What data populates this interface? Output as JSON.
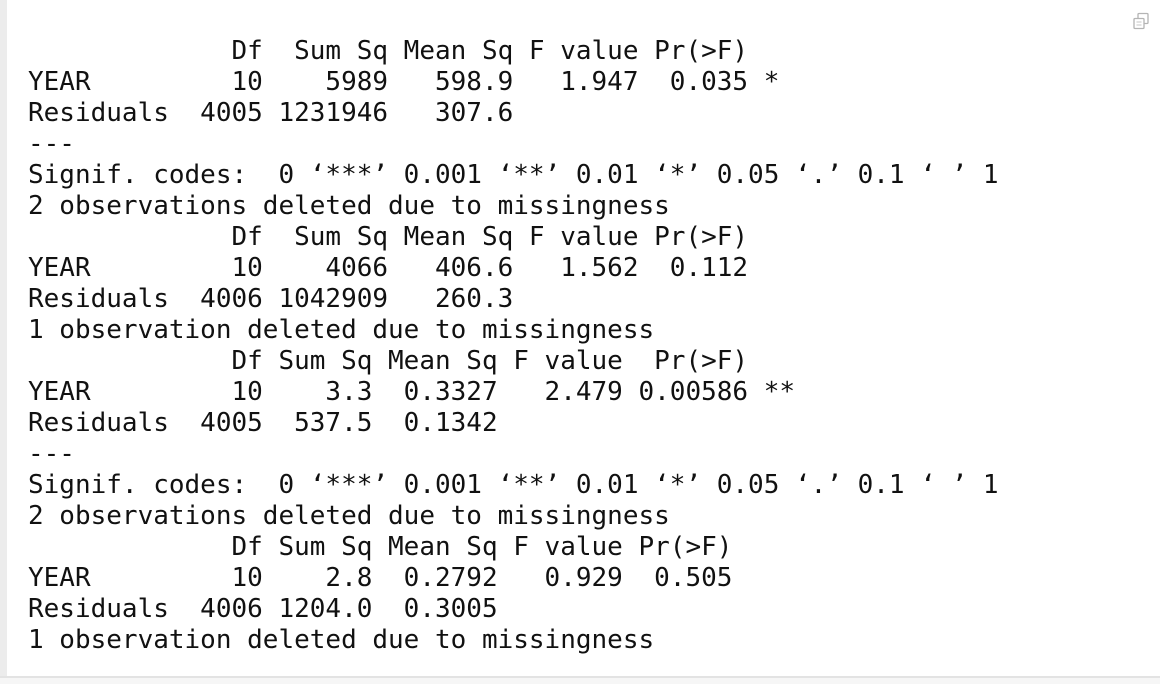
{
  "console": {
    "copy_icon": "copy-output-icon",
    "text_color": "#111111",
    "lines": [
      "             Df  Sum Sq Mean Sq F value Pr(>F)  ",
      "YEAR         10    5989   598.9   1.947  0.035 *",
      "Residuals  4005 1231946   307.6                 ",
      "---",
      "Signif. codes:  0 ‘***’ 0.001 ‘**’ 0.01 ‘*’ 0.05 ‘.’ 0.1 ‘ ’ 1",
      "2 observations deleted due to missingness",
      "             Df  Sum Sq Mean Sq F value Pr(>F)",
      "YEAR         10    4066   406.6   1.562  0.112",
      "Residuals  4006 1042909   260.3               ",
      "1 observation deleted due to missingness",
      "             Df Sum Sq Mean Sq F value  Pr(>F)   ",
      "YEAR         10    3.3  0.3327   2.479 0.00586 **",
      "Residuals  4005  537.5  0.1342                  ",
      "---",
      "Signif. codes:  0 ‘***’ 0.001 ‘**’ 0.01 ‘*’ 0.05 ‘.’ 0.1 ‘ ’ 1",
      "2 observations deleted due to missingness",
      "             Df Sum Sq Mean Sq F value Pr(>F)",
      "YEAR         10    2.8  0.2792   0.929  0.505",
      "Residuals  4006 1204.0  0.3005               ",
      "1 observation deleted due to missingness"
    ]
  }
}
